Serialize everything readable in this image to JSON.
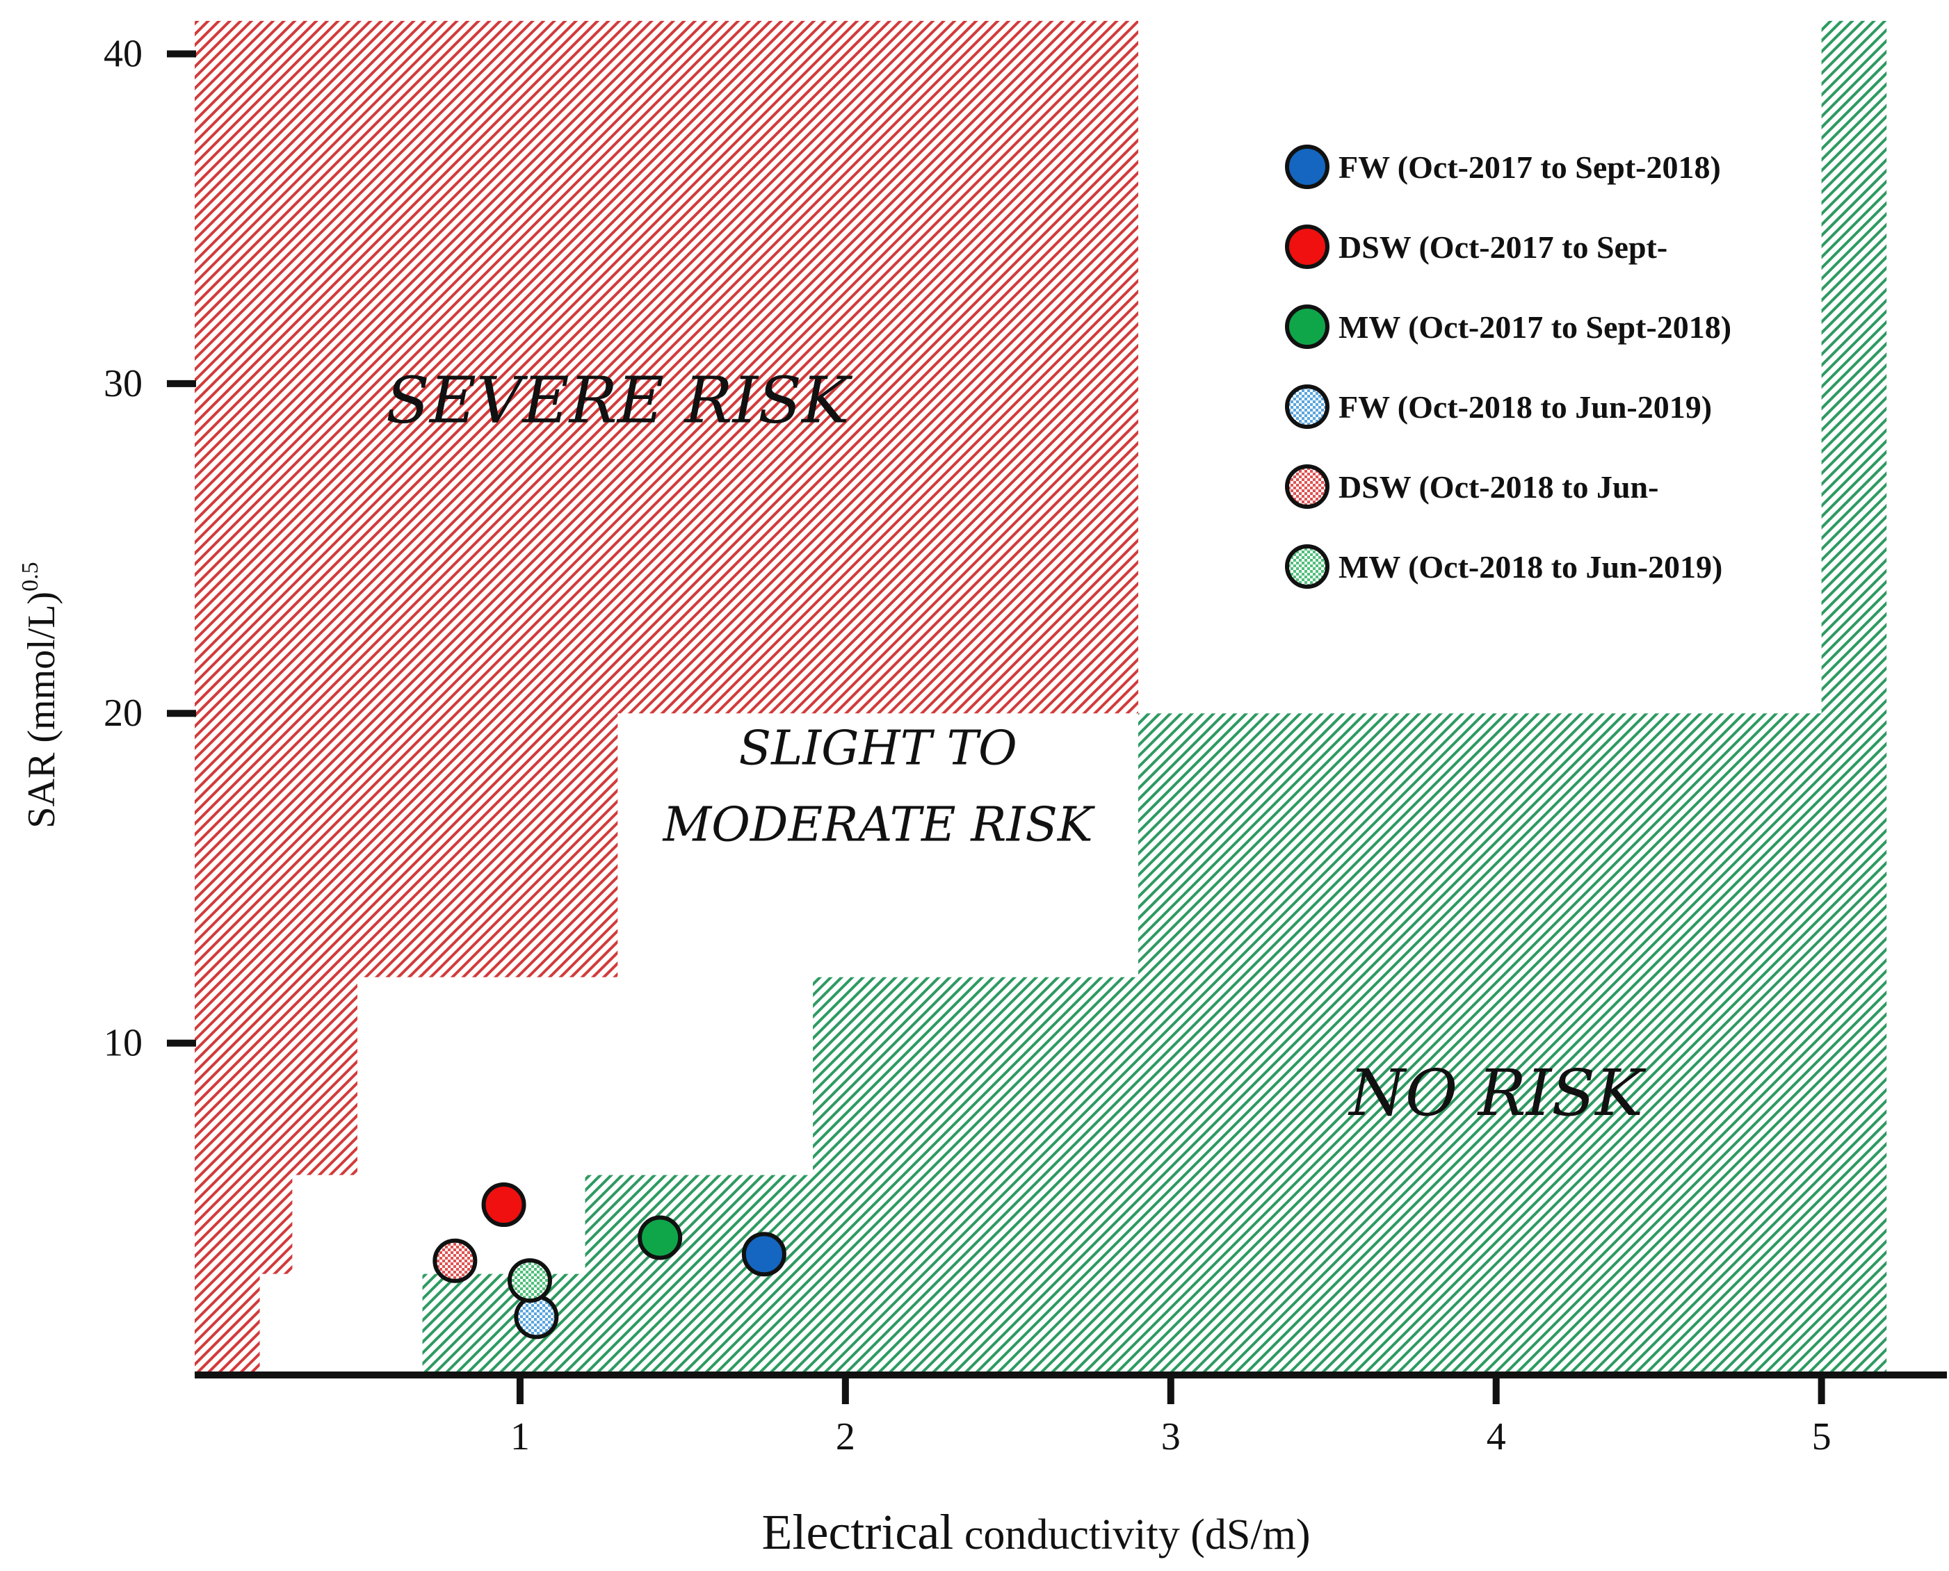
{
  "chart_data": {
    "type": "scatter",
    "title": "",
    "xlabel_main": "Electrical",
    "xlabel_rest": " conductivity (dS/m)",
    "ylabel_main": "SAR (mmol/L)",
    "ylabel_sup": "0.5",
    "xlim": [
      0.0,
      5.3
    ],
    "ylim": [
      0,
      41
    ],
    "xticks": [
      1,
      2,
      3,
      4,
      5
    ],
    "yticks": [
      10,
      20,
      30,
      40
    ],
    "zones": [
      {
        "name": "severe",
        "label_lines": [
          "SEVERE RISK"
        ],
        "color": "#d23b3b",
        "polygon": [
          [
            0.0,
            0
          ],
          [
            0.2,
            0
          ],
          [
            0.2,
            3
          ],
          [
            0.3,
            3
          ],
          [
            0.3,
            6
          ],
          [
            0.5,
            6
          ],
          [
            0.5,
            12
          ],
          [
            1.3,
            12
          ],
          [
            1.3,
            20
          ],
          [
            2.9,
            20
          ],
          [
            2.9,
            41
          ],
          [
            0.0,
            41
          ]
        ],
        "label_pos": [
          1.3,
          29.5
        ]
      },
      {
        "name": "slight",
        "label_lines": [
          "SLIGHT TO",
          "MODERATE RISK"
        ],
        "color": "#ffffff",
        "polygon": [],
        "label_pos": [
          2.1,
          17.8
        ]
      },
      {
        "name": "none",
        "label_lines": [
          "NO RISK"
        ],
        "color": "#2e9a62",
        "polygon": [
          [
            0.7,
            0
          ],
          [
            5.2,
            0
          ],
          [
            5.2,
            41
          ],
          [
            5.0,
            41
          ],
          [
            5.0,
            20
          ],
          [
            2.9,
            20
          ],
          [
            2.9,
            12
          ],
          [
            1.9,
            12
          ],
          [
            1.9,
            6
          ],
          [
            1.2,
            6
          ],
          [
            1.2,
            3
          ],
          [
            0.7,
            3
          ]
        ],
        "label_pos": [
          4.0,
          8.5
        ]
      }
    ],
    "series": [
      {
        "name": "FW (Oct-2017 to Sept-2018)",
        "color": "#1466c0",
        "pattern": "solid",
        "x": [
          1.75
        ],
        "y": [
          3.6
        ]
      },
      {
        "name": "DSW (Oct-2017 to Sept-",
        "color": "#f01010",
        "pattern": "solid",
        "x": [
          0.95
        ],
        "y": [
          5.1
        ]
      },
      {
        "name": "MW (Oct-2017 to Sept-2018)",
        "color": "#0fa64a",
        "pattern": "solid",
        "x": [
          1.43
        ],
        "y": [
          4.1
        ]
      },
      {
        "name": "FW (Oct-2018 to Jun-2019)",
        "color": "#5aa5de",
        "pattern": "check",
        "x": [
          1.05
        ],
        "y": [
          1.7
        ]
      },
      {
        "name": "DSW (Oct-2018 to Jun-",
        "color": "#e05252",
        "pattern": "check",
        "x": [
          0.8
        ],
        "y": [
          3.4
        ]
      },
      {
        "name": "MW (Oct-2018 to Jun-2019)",
        "color": "#4fbf7a",
        "pattern": "check",
        "x": [
          1.03
        ],
        "y": [
          2.8
        ]
      }
    ],
    "legend_position": "top-right"
  }
}
